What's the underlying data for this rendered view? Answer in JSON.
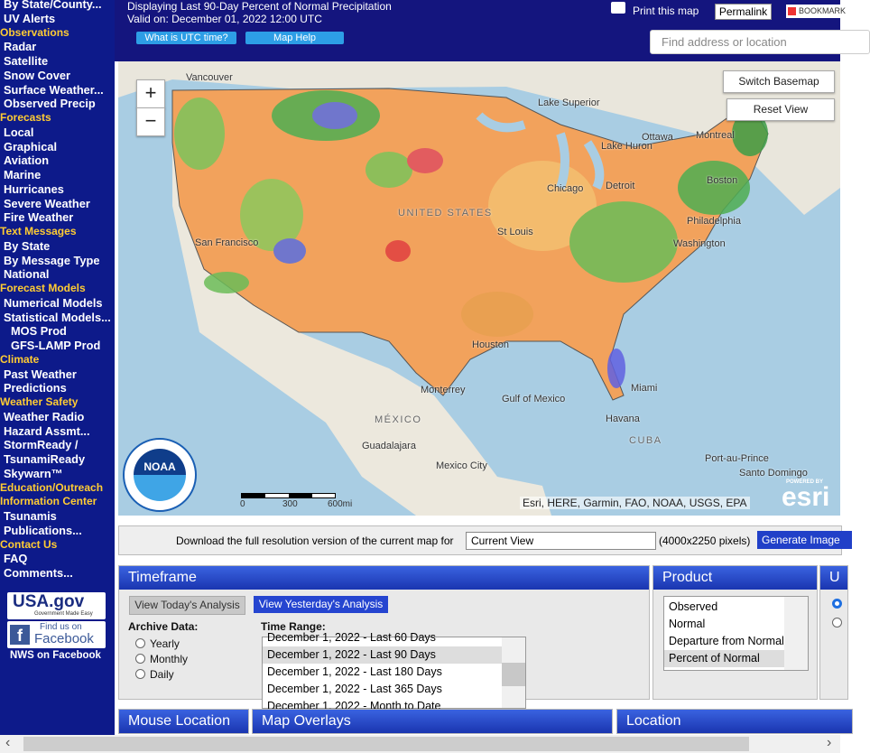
{
  "header": {
    "title": "Displaying Last 90-Day Percent of Normal Precipitation",
    "valid": "Valid on: December 01, 2022 12:00 UTC",
    "buttons": [
      "What is UTC time?",
      "Map Help"
    ],
    "print": "Print this map",
    "permalink": "Permalink",
    "bookmark": "BOOKMARK",
    "search_placeholder": "Find address or location"
  },
  "sidebar": {
    "top_links": [
      "By State/County...",
      "UV Alerts"
    ],
    "sections": [
      {
        "heading": "Observations",
        "links": [
          "Radar",
          "Satellite",
          "Snow Cover",
          "Surface Weather...",
          "Observed Precip"
        ]
      },
      {
        "heading": "Forecasts",
        "links": [
          "Local",
          "Graphical",
          "Aviation",
          "Marine",
          "Hurricanes",
          "Severe Weather",
          "Fire Weather"
        ]
      },
      {
        "heading": "Text Messages",
        "links": [
          "By State",
          "By Message Type",
          "National"
        ]
      },
      {
        "heading": "Forecast Models",
        "links": [
          "Numerical Models",
          "Statistical Models..."
        ],
        "sublinks": [
          "MOS Prod",
          "GFS-LAMP Prod"
        ]
      },
      {
        "heading": "Climate",
        "links": [
          "Past Weather",
          "Predictions"
        ]
      },
      {
        "heading": "Weather Safety",
        "links": [
          "Weather Radio",
          "Hazard Assmt...",
          "StormReady / TsunamiReady",
          "Skywarn™"
        ]
      },
      {
        "heading": "Education/Outreach"
      },
      {
        "heading": "Information Center",
        "links": [
          "Tsunamis",
          "Publications..."
        ]
      },
      {
        "heading": "Contact Us",
        "links": [
          "FAQ",
          "Comments..."
        ]
      }
    ],
    "usa_gov": {
      "title": "USA.gov",
      "tagline": "Government Made Easy"
    },
    "facebook": {
      "find": "Find us on",
      "name": "Facebook"
    },
    "nws_facebook": "NWS on Facebook"
  },
  "map": {
    "zoom_in": "+",
    "zoom_out": "−",
    "switch_basemap": "Switch Basemap",
    "reset_view": "Reset View",
    "labels": [
      "Vancouver",
      "Lake Superior",
      "Ottawa",
      "Montreal",
      "Lake Huron",
      "Chicago",
      "Detroit",
      "Boston",
      "Philadelphia",
      "Washington",
      "UNITED STATES",
      "St Louis",
      "San Francisco",
      "Houston",
      "Monterrey",
      "Gulf of Mexico",
      "Miami",
      "MÉXICO",
      "Havana",
      "CUBA",
      "Guadalajara",
      "Mexico City",
      "Port-au-Prince",
      "Santo Domingo"
    ],
    "scale": [
      "0",
      "300",
      "600mi"
    ],
    "noaa": "NOAA",
    "attribution": "Esri, HERE, Garmin, FAO, NOAA, USGS, EPA",
    "powered": "POWERED BY",
    "esri": "esri"
  },
  "download": {
    "text": "Download the full resolution version of the current map for",
    "select": "Current View",
    "size": "(4000x2250 pixels)",
    "button": "Generate Image"
  },
  "timeframe": {
    "title": "Timeframe",
    "today": "View Today's Analysis",
    "yesterday": "View Yesterday's Analysis",
    "archive_label": "Archive Data:",
    "archive_options": [
      "Yearly",
      "Monthly",
      "Daily"
    ],
    "range_label": "Time Range:",
    "range_options": [
      "December 1, 2022 - Last 60 Days",
      "December 1, 2022 - Last 90 Days",
      "December 1, 2022 - Last 180 Days",
      "December 1, 2022 - Last 365 Days",
      "December 1, 2022 - Month to Date"
    ],
    "range_selected": 1
  },
  "product": {
    "title": "Product",
    "options": [
      "Observed",
      "Normal",
      "Departure from Normal",
      "Percent of Normal"
    ],
    "selected": 3
  },
  "units": {
    "title": "U"
  },
  "bottom_panels": [
    "Mouse Location",
    "Map Overlays",
    "Location"
  ]
}
